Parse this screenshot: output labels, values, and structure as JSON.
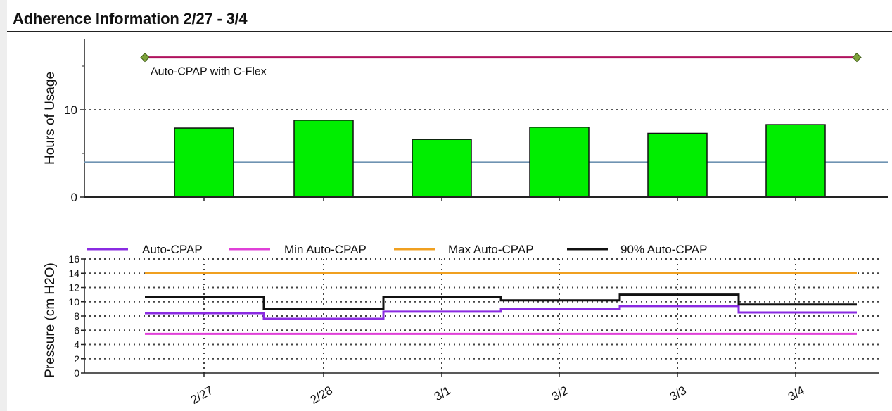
{
  "title": "Adherence Information 2/27 - 3/4",
  "colors": {
    "bar_fill": "#00ee00",
    "mode_line": "#b0125e",
    "mode_marker": "#7da23a",
    "reference_line": "#6f93b2",
    "auto_cpap": "#8a2be2",
    "min_auto_cpap": "#e040d8",
    "max_auto_cpap": "#f0a020",
    "p90_auto_cpap": "#111111"
  },
  "chart_data": [
    {
      "type": "bar",
      "ylabel": "Hours of Usage",
      "ylim": [
        0,
        18
      ],
      "yticks": [
        0,
        10
      ],
      "grid": true,
      "reference_line": 4,
      "mode_annotation": "Auto-CPAP with C-Flex",
      "mode_level": 16,
      "categories": [
        "2/27",
        "2/28",
        "3/1",
        "3/2",
        "3/3",
        "3/4"
      ],
      "values": [
        7.9,
        8.8,
        6.6,
        8.0,
        7.3,
        8.3
      ]
    },
    {
      "type": "line",
      "ylabel": "Pressure (cm H2O)",
      "ylim": [
        0,
        16
      ],
      "yticks": [
        0,
        2,
        4,
        6,
        8,
        10,
        12,
        14,
        16
      ],
      "grid": true,
      "legend_position": "top",
      "x": [
        "2/27",
        "2/28",
        "3/1",
        "3/2",
        "3/3",
        "3/4"
      ],
      "series": [
        {
          "name": "Auto-CPAP",
          "values": [
            8.4,
            7.6,
            8.6,
            9.0,
            9.4,
            8.5
          ]
        },
        {
          "name": "Min Auto-CPAP",
          "values": [
            5.5,
            5.5,
            5.5,
            5.5,
            5.5,
            5.5
          ]
        },
        {
          "name": "Max Auto-CPAP",
          "values": [
            14.0,
            14.0,
            14.0,
            14.0,
            14.0,
            14.0
          ]
        },
        {
          "name": "90% Auto-CPAP",
          "values": [
            10.7,
            9.0,
            10.7,
            10.2,
            11.0,
            9.6
          ]
        }
      ]
    }
  ]
}
